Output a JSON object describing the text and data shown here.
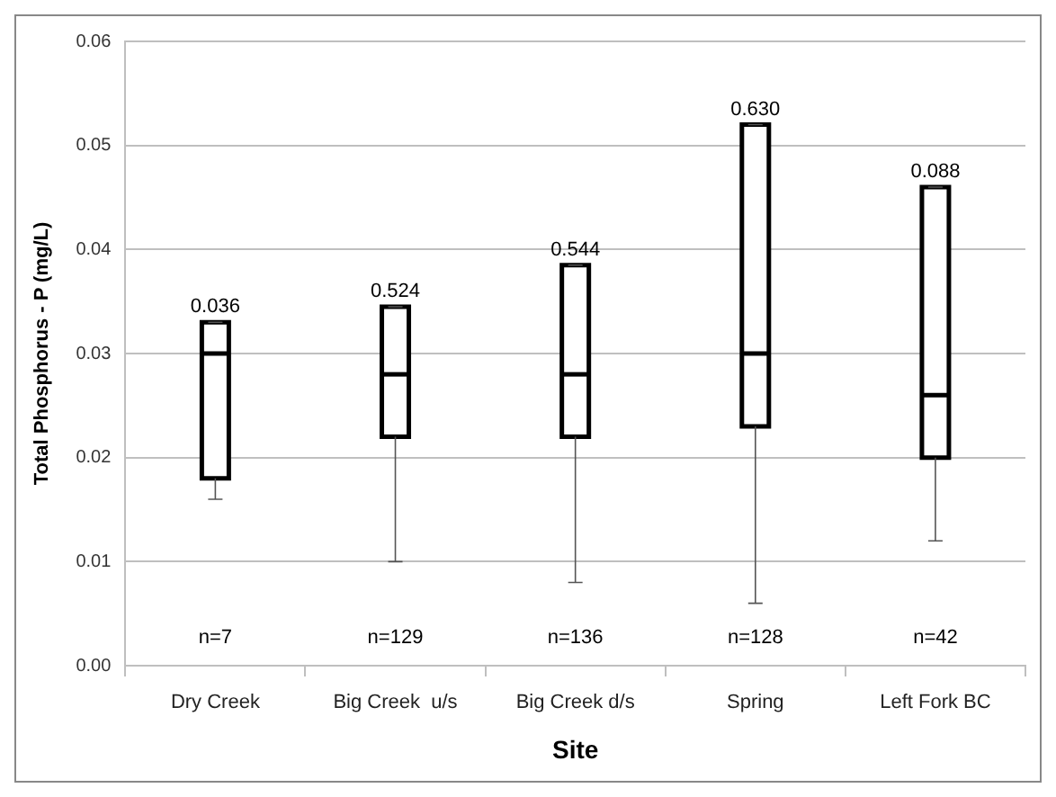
{
  "chart_data": {
    "type": "box",
    "xlabel": "Site",
    "ylabel": "Total Phosphorus - P (mg/L)",
    "categories": [
      "Dry Creek",
      "Big Creek  u/s",
      "Big Creek d/s",
      "Spring",
      "Left Fork BC"
    ],
    "color": "#ffffff",
    "boxes": [
      {
        "low": 0.016,
        "q1": 0.018,
        "median": 0.03,
        "q3": 0.033,
        "high": 0.033
      },
      {
        "low": 0.01,
        "q1": 0.022,
        "median": 0.028,
        "q3": 0.0345,
        "high": 0.0345
      },
      {
        "low": 0.008,
        "q1": 0.022,
        "median": 0.028,
        "q3": 0.0385,
        "high": 0.0385
      },
      {
        "low": 0.006,
        "q1": 0.023,
        "median": 0.03,
        "q3": 0.052,
        "high": 0.052
      },
      {
        "low": 0.012,
        "q1": 0.02,
        "median": 0.026,
        "q3": 0.046,
        "high": 0.046
      }
    ],
    "ylim": [
      0,
      0.06
    ],
    "yticks": [
      {
        "value": 0,
        "label": "0.00"
      },
      0.01,
      0.02,
      0.03,
      0.04,
      0.05,
      0.06
    ],
    "grid": "y",
    "annotations": [
      {
        "text": "0.036",
        "x": "Dry Creek",
        "y": 0.033
      },
      {
        "text": "0.524",
        "x": "Big Creek  u/s",
        "y": 0.0345
      },
      {
        "text": "0.544",
        "x": "Big Creek d/s",
        "y": 0.0385
      },
      {
        "text": "0.630",
        "x": "Spring",
        "y": 0.052
      },
      {
        "text": "0.088",
        "x": "Left Fork BC",
        "y": 0.046
      },
      "n=7",
      "n=129",
      "n=136",
      "n=128",
      "n=42"
    ]
  }
}
